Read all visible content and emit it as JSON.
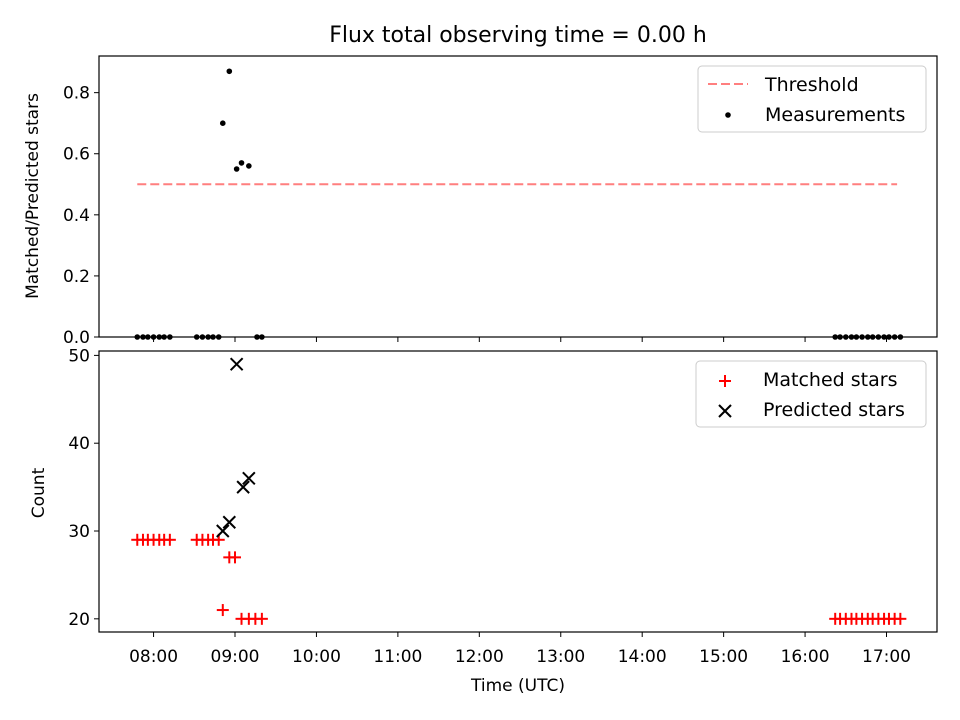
{
  "chart_data": [
    {
      "type": "scatter",
      "title": "Flux total observing time = 0.00 h",
      "xlabel": "",
      "ylabel": "Matched/Predicted stars",
      "xlim": [
        7.33,
        17.62
      ],
      "ylim": [
        0,
        0.92
      ],
      "yticks": [
        0.0,
        0.2,
        0.4,
        0.6,
        0.8
      ],
      "ytick_labels": [
        "0.0",
        "0.2",
        "0.4",
        "0.6",
        "0.8"
      ],
      "grid": false,
      "legend": "top-right",
      "threshold": {
        "name": "Threshold",
        "value": 0.5,
        "x": [
          7.8,
          17.13
        ],
        "color": "#ff7f7f"
      },
      "series": [
        {
          "name": "Measurements",
          "marker": "dot",
          "color": "#000000",
          "x": [
            7.8,
            7.87,
            7.93,
            8.0,
            8.07,
            8.13,
            8.2,
            8.53,
            8.6,
            8.67,
            8.73,
            8.8,
            8.85,
            8.93,
            9.02,
            9.08,
            9.17,
            9.27,
            9.33,
            16.37,
            16.43,
            16.5,
            16.57,
            16.63,
            16.7,
            16.77,
            16.83,
            16.9,
            16.97,
            17.03,
            17.1,
            17.17
          ],
          "y": [
            0,
            0,
            0,
            0,
            0,
            0,
            0,
            0,
            0,
            0,
            0,
            0,
            0.7,
            0.87,
            0.55,
            0.57,
            0.56,
            0,
            0,
            0,
            0,
            0,
            0,
            0,
            0,
            0,
            0,
            0,
            0,
            0,
            0,
            0
          ]
        }
      ]
    },
    {
      "type": "scatter",
      "title": "",
      "xlabel": "Time (UTC)",
      "ylabel": "Count",
      "xlim": [
        7.33,
        17.62
      ],
      "ylim": [
        18.5,
        50.5
      ],
      "yticks": [
        20,
        30,
        40,
        50
      ],
      "ytick_labels": [
        "20",
        "30",
        "40",
        "50"
      ],
      "xticks": [
        8,
        9,
        10,
        11,
        12,
        13,
        14,
        15,
        16,
        17
      ],
      "xtick_labels": [
        "08:00",
        "09:00",
        "10:00",
        "11:00",
        "12:00",
        "13:00",
        "14:00",
        "15:00",
        "16:00",
        "17:00"
      ],
      "grid": false,
      "legend": "top-right",
      "series": [
        {
          "name": "Matched stars",
          "marker": "plus",
          "color": "#ff0000",
          "x": [
            7.8,
            7.87,
            7.93,
            8.0,
            8.07,
            8.13,
            8.2,
            8.53,
            8.6,
            8.67,
            8.73,
            8.8,
            8.85,
            8.93,
            9.0,
            9.08,
            9.17,
            9.25,
            9.33,
            16.37,
            16.43,
            16.5,
            16.57,
            16.63,
            16.7,
            16.77,
            16.83,
            16.9,
            16.97,
            17.03,
            17.1,
            17.17
          ],
          "y": [
            29,
            29,
            29,
            29,
            29,
            29,
            29,
            29,
            29,
            29,
            29,
            29,
            21,
            27,
            27,
            20,
            20,
            20,
            20,
            20,
            20,
            20,
            20,
            20,
            20,
            20,
            20,
            20,
            20,
            20,
            20,
            20
          ]
        },
        {
          "name": "Predicted stars",
          "marker": "x",
          "color": "#000000",
          "x": [
            8.85,
            8.93,
            9.02,
            9.1,
            9.17
          ],
          "y": [
            30,
            31,
            49,
            35,
            36
          ]
        }
      ]
    }
  ]
}
